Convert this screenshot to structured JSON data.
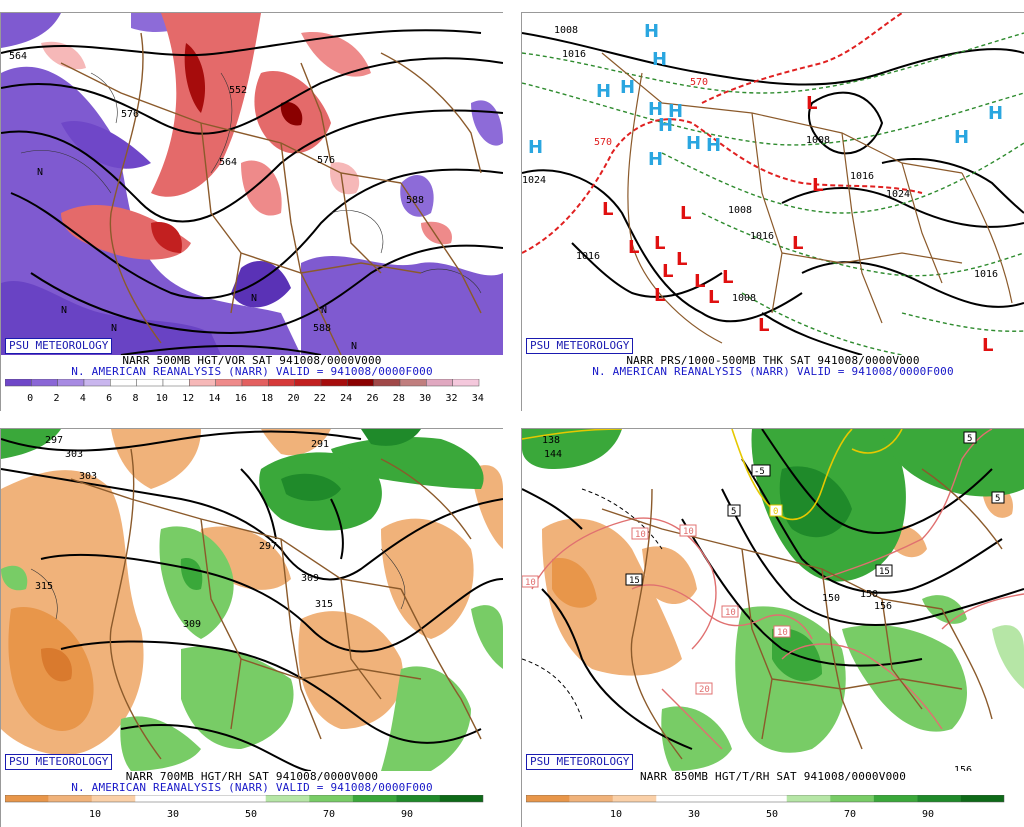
{
  "badge": "PSU METEOROLOGY",
  "panels": {
    "p1": {
      "title": "NARR 500MB HGT/VOR SAT 941008/0000V000",
      "subtitle": "N. AMERICAN REANALYSIS (NARR) VALID = 941008/0000F000",
      "colorbar_labels": [
        "0",
        "2",
        "4",
        "6",
        "8",
        "10",
        "12",
        "14",
        "16",
        "18",
        "20",
        "22",
        "24",
        "26",
        "28",
        "30",
        "32",
        "34"
      ],
      "colorbar_colors": [
        "#6f47c8",
        "#8a66d6",
        "#a78ae2",
        "#c9b6ee",
        "#ffffff",
        "#ffffff",
        "#ffffff",
        "#f6b8b8",
        "#ee8a8a",
        "#e36060",
        "#d63a3a",
        "#c22020",
        "#a60c0c",
        "#8a0000",
        "#a04848",
        "#c07e7e",
        "#e0a8c0",
        "#f4c8dc"
      ],
      "contour_labels": [
        "564",
        "552",
        "576",
        "564",
        "576",
        "588",
        "588"
      ],
      "n_label": "N"
    },
    "p2": {
      "title": "NARR PRS/1000-500MB THK SAT 941008/0000V000",
      "subtitle": "N. AMERICAN REANALYSIS (NARR) VALID = 941008/0000F000",
      "contour_labels": [
        "1008",
        "1016",
        "1024",
        "1008",
        "1016",
        "1016",
        "1024",
        "1016",
        "1016",
        "1008",
        "1016",
        "570",
        "570"
      ],
      "high_label": "H",
      "low_label": "L"
    },
    "p3": {
      "title": "NARR 700MB HGT/RH SAT 941008/0000V000",
      "subtitle": "N. AMERICAN REANALYSIS (NARR) VALID = 941008/0000F000",
      "colorbar_labels": [
        "10",
        "30",
        "50",
        "70",
        "90"
      ],
      "contour_labels": [
        "297",
        "303",
        "291",
        "297",
        "303",
        "309",
        "315",
        "315",
        "309"
      ]
    },
    "p4": {
      "title": "NARR 850MB HGT/T/RH SAT 941008/0000V000",
      "subtitle": "",
      "colorbar_labels": [
        "10",
        "30",
        "50",
        "70",
        "90"
      ],
      "contour_labels": [
        "138",
        "144",
        "150",
        "150",
        "156",
        "156"
      ],
      "temp_labels": [
        "10",
        "10",
        "10",
        "10",
        "15",
        "15",
        "20",
        "5",
        "5",
        "0",
        "-5",
        "10",
        "5"
      ]
    },
    "rh_colors": [
      "#e8964a",
      "#f0b27a",
      "#fad0a8",
      "#ffffff",
      "#ffffff",
      "#ffffff",
      "#b6e6a6",
      "#78cc66",
      "#3aa83a",
      "#1f8a2a",
      "#0e6a18"
    ]
  }
}
